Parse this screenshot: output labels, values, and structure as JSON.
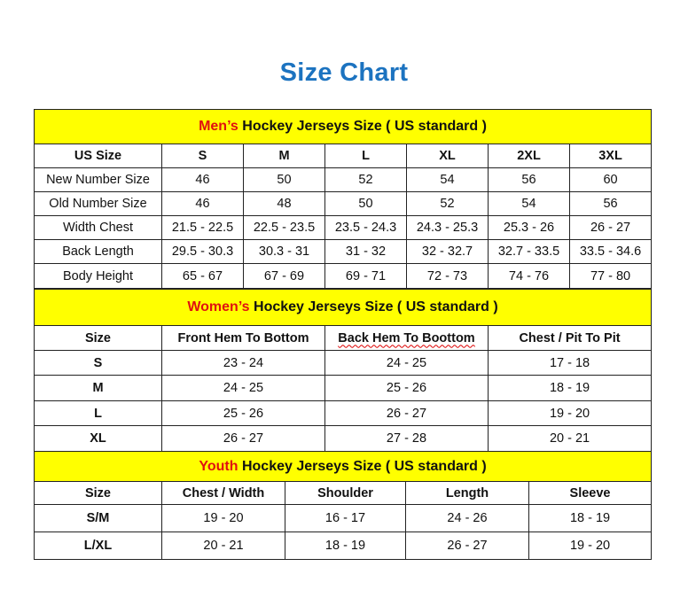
{
  "title": "Size Chart",
  "men": {
    "header_accent": "Men’s",
    "header_rest": " Hockey Jerseys Size ( US standard )",
    "columns": [
      "US Size",
      "S",
      "M",
      "L",
      "XL",
      "2XL",
      "3XL"
    ],
    "rows": [
      [
        "New Number Size",
        "46",
        "50",
        "52",
        "54",
        "56",
        "60"
      ],
      [
        "Old Number Size",
        "46",
        "48",
        "50",
        "52",
        "54",
        "56"
      ],
      [
        "Width Chest",
        "21.5 - 22.5",
        "22.5 - 23.5",
        "23.5 - 24.3",
        "24.3 - 25.3",
        "25.3 - 26",
        "26 - 27"
      ],
      [
        "Back Length",
        "29.5 - 30.3",
        "30.3 - 31",
        "31 - 32",
        "32 - 32.7",
        "32.7 - 33.5",
        "33.5 - 34.6"
      ],
      [
        "Body Height",
        "65 - 67",
        "67 - 69",
        "69 - 71",
        "72 - 73",
        "74 - 76",
        "77 - 80"
      ]
    ]
  },
  "women": {
    "header_accent": "Women’s",
    "header_rest": " Hockey Jerseys Size ( US standard )",
    "columns": [
      "Size",
      "Front Hem To Bottom",
      "Back Hem To Boottom",
      "Chest / Pit To Pit"
    ],
    "rows": [
      [
        "S",
        "23 - 24",
        "24 - 25",
        "17 - 18"
      ],
      [
        "M",
        "24 - 25",
        "25 - 26",
        "18 - 19"
      ],
      [
        "L",
        "25 - 26",
        "26 - 27",
        "19 - 20"
      ],
      [
        "XL",
        "26 - 27",
        "27 - 28",
        "20 - 21"
      ]
    ]
  },
  "youth": {
    "header_accent": "Youth",
    "header_rest": " Hockey Jerseys Size ( US standard )",
    "columns": [
      "Size",
      "Chest / Width",
      "Shoulder",
      "Length",
      "Sleeve"
    ],
    "rows": [
      [
        "S/M",
        "19 - 20",
        "16 - 17",
        "24 - 26",
        "18 - 19"
      ],
      [
        "L/XL",
        "20 - 21",
        "18 - 19",
        "26 - 27",
        "19 - 20"
      ]
    ]
  },
  "colors": {
    "title": "#1c73c0",
    "header_bg": "#ffff00",
    "accent": "#e01010"
  }
}
